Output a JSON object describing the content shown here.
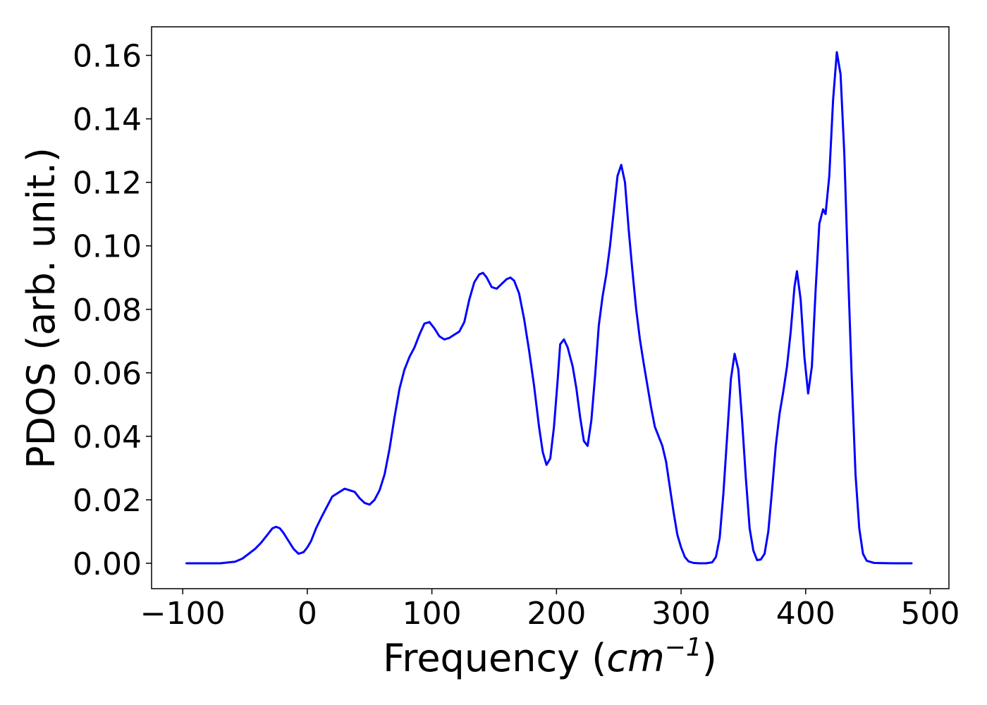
{
  "chart_data": {
    "type": "line",
    "title": "",
    "xlabel": "Frequency (",
    "xlabel_math": "cm",
    "xlabel_sup": "−1",
    "xlabel_close": ")",
    "ylabel": "PDOS (arb. unit.)",
    "xlim": [
      -125,
      515
    ],
    "ylim": [
      -0.008,
      0.169
    ],
    "xticks": [
      -100,
      0,
      100,
      200,
      300,
      400,
      500
    ],
    "xtick_labels": [
      "−100",
      "0",
      "100",
      "200",
      "300",
      "400",
      "500"
    ],
    "yticks": [
      0.0,
      0.02,
      0.04,
      0.06,
      0.08,
      0.1,
      0.12,
      0.14,
      0.16
    ],
    "ytick_labels": [
      "0.00",
      "0.02",
      "0.04",
      "0.06",
      "0.08",
      "0.10",
      "0.12",
      "0.14",
      "0.16"
    ],
    "grid": false,
    "line_color": "#0000ff",
    "series": [
      {
        "x": [
          -97,
          -70,
          -58,
          -52,
          -47,
          -42,
          -37,
          -32,
          -28,
          -25,
          -22,
          -19,
          -15,
          -11,
          -7,
          -3,
          0,
          3,
          7,
          12,
          20,
          30,
          38,
          42,
          46,
          50,
          54,
          58,
          62,
          66,
          70,
          74,
          78,
          82,
          86,
          90,
          94,
          98,
          102,
          106,
          110,
          114,
          118,
          122,
          126,
          130,
          134,
          138,
          141,
          144,
          148,
          152,
          156,
          160,
          163,
          166,
          170,
          174,
          178,
          182,
          186,
          189,
          192,
          195,
          198,
          201,
          203,
          206,
          209,
          213,
          216,
          219,
          222,
          225,
          228,
          231,
          234,
          237,
          240,
          243,
          246,
          249,
          252,
          255,
          258,
          261,
          264,
          267,
          270,
          273,
          276,
          279,
          282,
          285,
          288,
          291,
          294,
          297,
          300,
          303,
          306,
          310,
          315,
          320,
          325,
          328,
          331,
          334,
          337,
          340,
          343,
          346,
          349,
          352,
          355,
          358,
          361,
          364,
          367,
          370,
          373,
          376,
          379,
          382,
          385,
          388,
          391,
          393,
          396,
          399,
          402,
          405,
          408,
          411,
          414,
          416,
          419,
          422,
          425,
          428,
          431,
          434,
          437,
          440,
          443,
          446,
          449,
          455,
          470,
          485
        ],
        "y": [
          0.0,
          0.0,
          0.0005,
          0.0015,
          0.003,
          0.0045,
          0.0065,
          0.009,
          0.011,
          0.0115,
          0.011,
          0.0095,
          0.007,
          0.0045,
          0.003,
          0.0035,
          0.005,
          0.007,
          0.011,
          0.015,
          0.021,
          0.0235,
          0.0225,
          0.0205,
          0.019,
          0.0185,
          0.02,
          0.023,
          0.028,
          0.036,
          0.046,
          0.055,
          0.061,
          0.065,
          0.068,
          0.072,
          0.0755,
          0.076,
          0.074,
          0.0715,
          0.0705,
          0.071,
          0.072,
          0.073,
          0.076,
          0.083,
          0.0885,
          0.091,
          0.0915,
          0.09,
          0.087,
          0.0865,
          0.088,
          0.0895,
          0.09,
          0.089,
          0.085,
          0.077,
          0.067,
          0.056,
          0.043,
          0.035,
          0.031,
          0.033,
          0.043,
          0.058,
          0.069,
          0.0705,
          0.068,
          0.062,
          0.055,
          0.046,
          0.0385,
          0.037,
          0.045,
          0.059,
          0.075,
          0.084,
          0.091,
          0.1,
          0.111,
          0.122,
          0.1255,
          0.12,
          0.105,
          0.092,
          0.08,
          0.0705,
          0.063,
          0.056,
          0.049,
          0.043,
          0.04,
          0.037,
          0.032,
          0.024,
          0.016,
          0.009,
          0.005,
          0.002,
          0.0006,
          0.0001,
          0.0,
          0.0,
          0.0003,
          0.002,
          0.008,
          0.022,
          0.04,
          0.058,
          0.066,
          0.061,
          0.045,
          0.027,
          0.011,
          0.004,
          0.001,
          0.0012,
          0.003,
          0.01,
          0.023,
          0.037,
          0.047,
          0.054,
          0.062,
          0.073,
          0.087,
          0.092,
          0.083,
          0.065,
          0.0535,
          0.062,
          0.086,
          0.107,
          0.1115,
          0.11,
          0.122,
          0.146,
          0.161,
          0.154,
          0.129,
          0.092,
          0.058,
          0.028,
          0.011,
          0.003,
          0.0008,
          0.0001,
          0.0,
          0.0
        ]
      }
    ]
  }
}
